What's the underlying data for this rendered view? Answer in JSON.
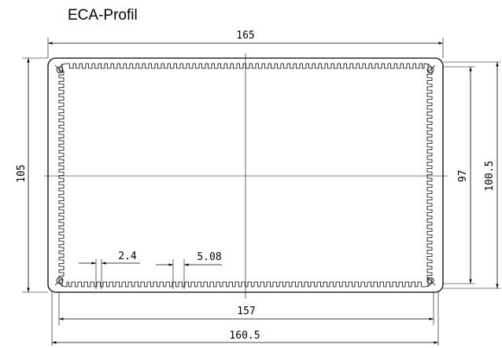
{
  "title": "ECA-Profil",
  "dimensions": {
    "overall_width": "165",
    "overall_height": "105",
    "inner_width": "157",
    "mid_width": "160.5",
    "inner_height": "97",
    "mid_height": "100.5",
    "fin_pitch": "2.4",
    "fin_spacing": "5.08"
  }
}
